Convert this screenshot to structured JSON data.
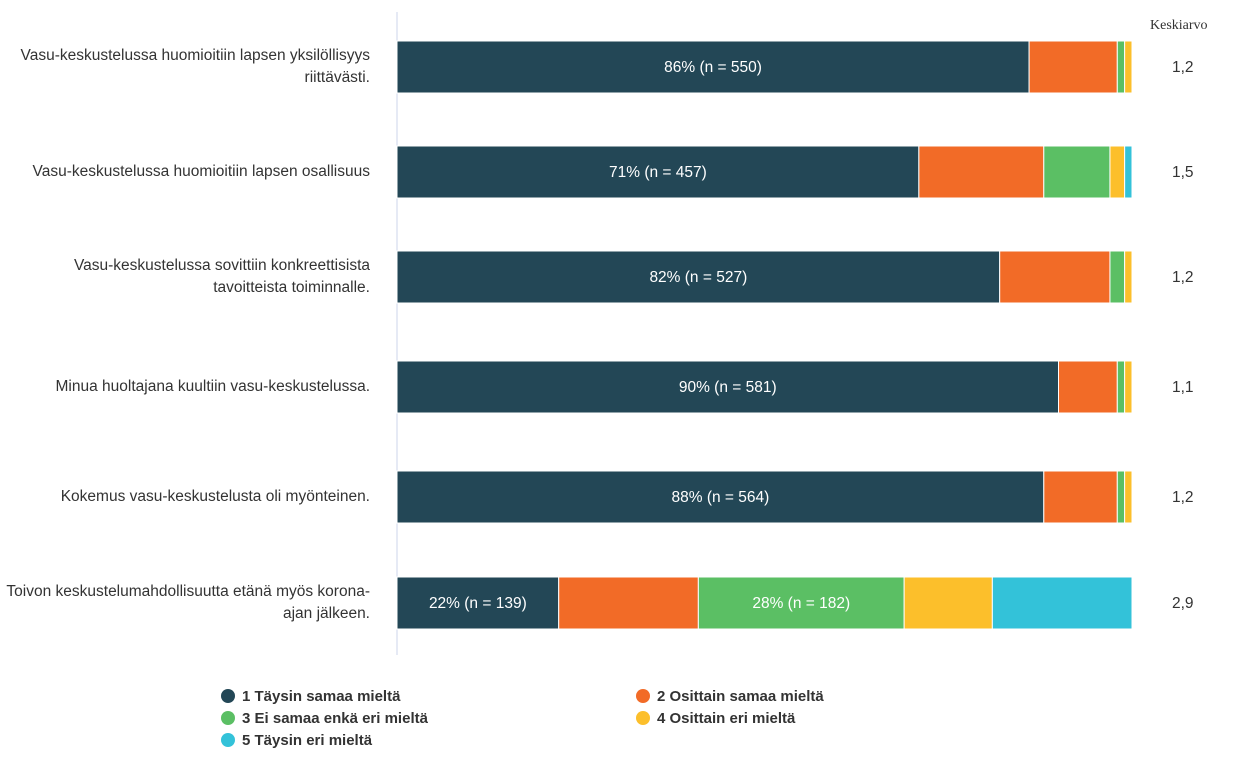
{
  "chart_data": {
    "type": "stacked_bar_horizontal",
    "categories": [
      "Vasu-keskustelussa huomioitiin lapsen yksilöllisyys riittävästi.",
      "Vasu-keskustelussa huomioitiin lapsen osallisuus",
      "Vasu-keskustelussa sovittiin konkreettisista tavoitteista toiminnalle.",
      "Minua huoltajana kuultiin vasu-keskustelussa.",
      "Kokemus vasu-keskustelusta oli myönteinen.",
      "Toivon keskustelumahdollisuutta etänä myös korona-ajan jälkeen."
    ],
    "xlim": [
      0,
      100
    ],
    "series": [
      {
        "name": "1 Täysin samaa mieltä",
        "color": "#234756",
        "values": [
          86,
          71,
          82,
          90,
          88,
          22
        ],
        "value_labels": [
          "86% (n = 550)",
          "71% (n = 457)",
          "82% (n = 527)",
          "90% (n = 581)",
          "88% (n = 564)",
          "22% (n = 139)"
        ]
      },
      {
        "name": "2 Osittain samaa mieltä",
        "color": "#f26b27",
        "values": [
          12,
          17,
          15,
          8,
          10,
          19
        ]
      },
      {
        "name": "3 Ei samaa enkä eri mieltä",
        "color": "#5bbf64",
        "values": [
          1,
          9,
          2,
          1,
          1,
          28
        ],
        "value_labels": [
          null,
          null,
          null,
          null,
          null,
          "28% (n = 182)"
        ]
      },
      {
        "name": "4 Osittain eri mieltä",
        "color": "#fcbf2b",
        "values": [
          1,
          2,
          1,
          1,
          1,
          12
        ]
      },
      {
        "name": "5 Täysin eri mieltä",
        "color": "#33c2d9",
        "values": [
          0,
          1,
          0,
          0,
          0,
          19
        ]
      }
    ],
    "mean_title": "Keskiarvo",
    "means": [
      "1,2",
      "1,5",
      "1,2",
      "1,1",
      "1,2",
      "2,9"
    ]
  }
}
